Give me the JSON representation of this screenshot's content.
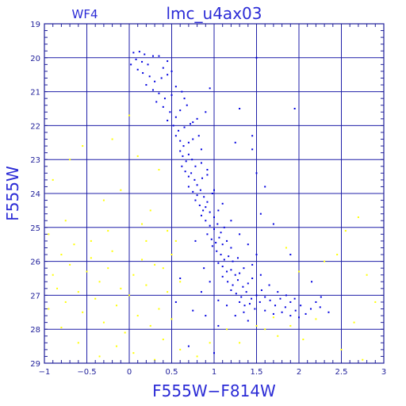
{
  "chart_data": {
    "type": "scatter",
    "title": "lmc_u4ax03",
    "chip_label": "WF4",
    "xlabel": "F555W−F814W",
    "ylabel": "F555W",
    "xlim": [
      -1,
      3
    ],
    "ylim": [
      29,
      19
    ],
    "y_inverted": true,
    "grid": true,
    "x_ticks": [
      -1,
      -0.5,
      0,
      0.5,
      1,
      1.5,
      2,
      2.5,
      3
    ],
    "x_tick_labels": [
      "−1",
      "−0.5",
      "0",
      "0.5",
      "1",
      "1.5",
      "2",
      "2.5",
      "3"
    ],
    "y_ticks": [
      19,
      20,
      21,
      22,
      23,
      24,
      25,
      26,
      27,
      28,
      29
    ],
    "y_tick_labels": [
      "19",
      "20",
      "21",
      "22",
      "23",
      "24",
      "25",
      "26",
      "27",
      "28",
      "29"
    ],
    "series": [
      {
        "color": "#0000e0",
        "marker": "small square",
        "points": [
          [
            0.05,
            19.85
          ],
          [
            0.12,
            19.82
          ],
          [
            0.18,
            19.9
          ],
          [
            0.08,
            20.05
          ],
          [
            0.15,
            20.12
          ],
          [
            0.22,
            20.2
          ],
          [
            0.35,
            19.95
          ],
          [
            0.4,
            20.3
          ],
          [
            0.1,
            20.35
          ],
          [
            0.16,
            20.45
          ],
          [
            0.24,
            20.55
          ],
          [
            0.3,
            20.7
          ],
          [
            0.38,
            20.6
          ],
          [
            0.45,
            20.5
          ],
          [
            0.2,
            20.8
          ],
          [
            0.28,
            20.95
          ],
          [
            0.35,
            21.05
          ],
          [
            0.42,
            21.2
          ],
          [
            0.5,
            21.1
          ],
          [
            0.55,
            20.85
          ],
          [
            0.62,
            21.0
          ],
          [
            0.32,
            21.3
          ],
          [
            0.4,
            21.45
          ],
          [
            0.48,
            21.6
          ],
          [
            0.55,
            21.75
          ],
          [
            0.6,
            21.55
          ],
          [
            0.68,
            21.4
          ],
          [
            0.45,
            21.85
          ],
          [
            0.52,
            22.0
          ],
          [
            0.58,
            22.15
          ],
          [
            0.65,
            22.05
          ],
          [
            0.72,
            21.95
          ],
          [
            0.8,
            21.8
          ],
          [
            0.9,
            21.6
          ],
          [
            0.55,
            22.3
          ],
          [
            0.6,
            22.45
          ],
          [
            0.64,
            22.6
          ],
          [
            0.7,
            22.5
          ],
          [
            0.75,
            22.4
          ],
          [
            0.82,
            22.3
          ],
          [
            0.6,
            22.75
          ],
          [
            0.63,
            22.9
          ],
          [
            0.67,
            23.05
          ],
          [
            0.7,
            22.85
          ],
          [
            0.74,
            23.0
          ],
          [
            0.78,
            23.2
          ],
          [
            0.85,
            23.1
          ],
          [
            0.62,
            23.2
          ],
          [
            0.66,
            23.35
          ],
          [
            0.7,
            23.5
          ],
          [
            0.73,
            23.4
          ],
          [
            0.77,
            23.6
          ],
          [
            0.8,
            23.75
          ],
          [
            0.86,
            23.55
          ],
          [
            0.92,
            23.45
          ],
          [
            0.7,
            23.8
          ],
          [
            0.75,
            23.95
          ],
          [
            0.8,
            24.05
          ],
          [
            0.84,
            23.9
          ],
          [
            0.88,
            24.1
          ],
          [
            0.92,
            24.25
          ],
          [
            0.98,
            24.0
          ],
          [
            0.78,
            24.2
          ],
          [
            0.83,
            24.35
          ],
          [
            0.87,
            24.5
          ],
          [
            0.9,
            24.4
          ],
          [
            0.95,
            24.55
          ],
          [
            1.0,
            24.7
          ],
          [
            1.05,
            24.5
          ],
          [
            0.85,
            24.65
          ],
          [
            0.9,
            24.8
          ],
          [
            0.95,
            24.95
          ],
          [
            1.0,
            25.05
          ],
          [
            1.04,
            24.9
          ],
          [
            1.08,
            25.15
          ],
          [
            1.12,
            25.0
          ],
          [
            0.92,
            25.2
          ],
          [
            0.97,
            25.35
          ],
          [
            1.02,
            25.45
          ],
          [
            1.06,
            25.3
          ],
          [
            1.1,
            25.5
          ],
          [
            1.15,
            25.4
          ],
          [
            1.2,
            25.6
          ],
          [
            0.98,
            25.55
          ],
          [
            1.03,
            25.7
          ],
          [
            1.08,
            25.8
          ],
          [
            1.12,
            25.95
          ],
          [
            1.17,
            25.85
          ],
          [
            1.22,
            26.0
          ],
          [
            1.28,
            25.9
          ],
          [
            1.05,
            26.05
          ],
          [
            1.1,
            26.15
          ],
          [
            1.15,
            26.3
          ],
          [
            1.2,
            26.25
          ],
          [
            1.25,
            26.4
          ],
          [
            1.3,
            26.35
          ],
          [
            1.35,
            26.2
          ],
          [
            1.1,
            26.45
          ],
          [
            1.16,
            26.6
          ],
          [
            1.22,
            26.7
          ],
          [
            1.28,
            26.55
          ],
          [
            1.34,
            26.75
          ],
          [
            1.4,
            26.65
          ],
          [
            1.45,
            26.5
          ],
          [
            1.2,
            26.85
          ],
          [
            1.26,
            26.95
          ],
          [
            1.32,
            27.05
          ],
          [
            1.38,
            26.9
          ],
          [
            1.44,
            27.1
          ],
          [
            1.5,
            27.0
          ],
          [
            1.56,
            26.85
          ],
          [
            1.3,
            27.2
          ],
          [
            1.36,
            27.3
          ],
          [
            1.42,
            27.25
          ],
          [
            1.48,
            27.4
          ],
          [
            1.54,
            27.2
          ],
          [
            1.6,
            27.05
          ],
          [
            1.66,
            27.15
          ],
          [
            1.72,
            27.3
          ],
          [
            1.78,
            27.1
          ],
          [
            1.84,
            27.35
          ],
          [
            1.9,
            27.2
          ],
          [
            1.96,
            27.45
          ],
          [
            2.02,
            27.3
          ],
          [
            2.08,
            27.55
          ],
          [
            2.14,
            27.4
          ],
          [
            2.2,
            27.2
          ],
          [
            2.26,
            27.05
          ],
          [
            1.6,
            27.45
          ],
          [
            1.7,
            27.55
          ],
          [
            1.8,
            27.5
          ],
          [
            1.9,
            27.6
          ],
          [
            2.0,
            27.65
          ],
          [
            1.35,
            27.5
          ],
          [
            1.25,
            27.6
          ],
          [
            1.15,
            27.3
          ],
          [
            1.05,
            27.15
          ],
          [
            0.95,
            26.6
          ],
          [
            0.88,
            26.2
          ],
          [
            0.78,
            25.4
          ],
          [
            1.45,
            26.1
          ],
          [
            1.55,
            26.4
          ],
          [
            1.65,
            26.7
          ],
          [
            1.75,
            26.9
          ],
          [
            1.85,
            27.0
          ],
          [
            1.95,
            27.1
          ],
          [
            1.5,
            25.8
          ],
          [
            1.4,
            25.5
          ],
          [
            1.3,
            25.2
          ],
          [
            1.2,
            24.8
          ],
          [
            1.1,
            24.3
          ],
          [
            1.0,
            23.9
          ],
          [
            0.92,
            23.3
          ],
          [
            0.85,
            22.7
          ],
          [
            0.75,
            21.9
          ],
          [
            0.65,
            21.2
          ],
          [
            0.5,
            20.4
          ],
          [
            0.45,
            20.1
          ],
          [
            0.28,
            19.95
          ],
          [
            0.02,
            20.2
          ],
          [
            1.25,
            22.5
          ],
          [
            1.3,
            21.5
          ],
          [
            1.45,
            22.3
          ],
          [
            1.5,
            23.4
          ],
          [
            1.6,
            23.8
          ],
          [
            1.55,
            24.6
          ],
          [
            1.7,
            24.9
          ],
          [
            1.9,
            25.8
          ],
          [
            2.15,
            26.6
          ],
          [
            2.25,
            27.35
          ],
          [
            2.35,
            27.5
          ],
          [
            0.95,
            20.9
          ],
          [
            1.5,
            20.0
          ],
          [
            1.45,
            22.7
          ],
          [
            1.95,
            21.5
          ],
          [
            0.75,
            27.45
          ],
          [
            0.55,
            27.2
          ],
          [
            0.9,
            27.6
          ],
          [
            0.7,
            28.5
          ],
          [
            1.0,
            28.7
          ],
          [
            0.85,
            26.9
          ],
          [
            0.6,
            26.5
          ],
          [
            1.05,
            27.9
          ],
          [
            1.4,
            27.75
          ]
        ]
      },
      {
        "color": "#ffff00",
        "marker": "small square",
        "points": [
          [
            -0.95,
            25.2
          ],
          [
            -0.9,
            26.4
          ],
          [
            -0.85,
            26.8
          ],
          [
            -0.8,
            25.8
          ],
          [
            -0.75,
            27.2
          ],
          [
            -0.7,
            26.1
          ],
          [
            -0.65,
            25.5
          ],
          [
            -0.6,
            26.9
          ],
          [
            -0.55,
            27.5
          ],
          [
            -0.5,
            26.3
          ],
          [
            -0.45,
            25.9
          ],
          [
            -0.4,
            27.1
          ],
          [
            -0.35,
            26.6
          ],
          [
            -0.3,
            27.8
          ],
          [
            -0.25,
            26.2
          ],
          [
            -0.2,
            25.7
          ],
          [
            -0.15,
            27.3
          ],
          [
            -0.1,
            26.8
          ],
          [
            -0.05,
            28.1
          ],
          [
            0.0,
            27.0
          ],
          [
            0.05,
            26.4
          ],
          [
            0.1,
            27.6
          ],
          [
            0.15,
            25.95
          ],
          [
            0.2,
            26.7
          ],
          [
            0.25,
            27.9
          ],
          [
            0.3,
            26.1
          ],
          [
            0.35,
            27.4
          ],
          [
            0.4,
            28.3
          ],
          [
            0.45,
            26.9
          ],
          [
            0.5,
            27.7
          ],
          [
            0.55,
            25.4
          ],
          [
            0.6,
            28.6
          ],
          [
            -0.9,
            23.6
          ],
          [
            -0.75,
            24.8
          ],
          [
            -0.55,
            22.6
          ],
          [
            -0.3,
            24.2
          ],
          [
            -0.1,
            23.9
          ],
          [
            0.0,
            21.7
          ],
          [
            0.1,
            22.9
          ],
          [
            0.25,
            24.5
          ],
          [
            0.35,
            23.3
          ],
          [
            0.45,
            25.1
          ],
          [
            -0.7,
            23.0
          ],
          [
            -0.45,
            25.4
          ],
          [
            -0.2,
            22.4
          ],
          [
            0.15,
            24.9
          ],
          [
            1.6,
            28.0
          ],
          [
            1.75,
            28.2
          ],
          [
            1.9,
            27.9
          ],
          [
            2.05,
            28.3
          ],
          [
            2.2,
            27.7
          ],
          [
            2.45,
            25.8
          ],
          [
            2.55,
            25.1
          ],
          [
            2.7,
            24.7
          ],
          [
            2.8,
            26.4
          ],
          [
            2.65,
            27.8
          ],
          [
            2.5,
            28.6
          ],
          [
            2.75,
            28.9
          ],
          [
            2.9,
            27.2
          ],
          [
            2.3,
            26.0
          ],
          [
            2.0,
            26.3
          ],
          [
            1.85,
            25.6
          ],
          [
            1.7,
            27.65
          ],
          [
            1.5,
            27.9
          ],
          [
            1.3,
            28.4
          ],
          [
            1.15,
            28.0
          ],
          [
            0.8,
            28.8
          ],
          [
            0.95,
            28.4
          ],
          [
            -0.8,
            27.95
          ],
          [
            -0.6,
            28.4
          ],
          [
            -0.35,
            28.8
          ],
          [
            -0.15,
            28.5
          ],
          [
            0.05,
            28.7
          ],
          [
            0.3,
            28.9
          ],
          [
            -0.95,
            27.4
          ],
          [
            -0.25,
            25.1
          ],
          [
            0.2,
            25.4
          ],
          [
            0.4,
            26.2
          ],
          [
            0.5,
            25.8
          ],
          [
            0.6,
            26.6
          ]
        ]
      }
    ]
  }
}
